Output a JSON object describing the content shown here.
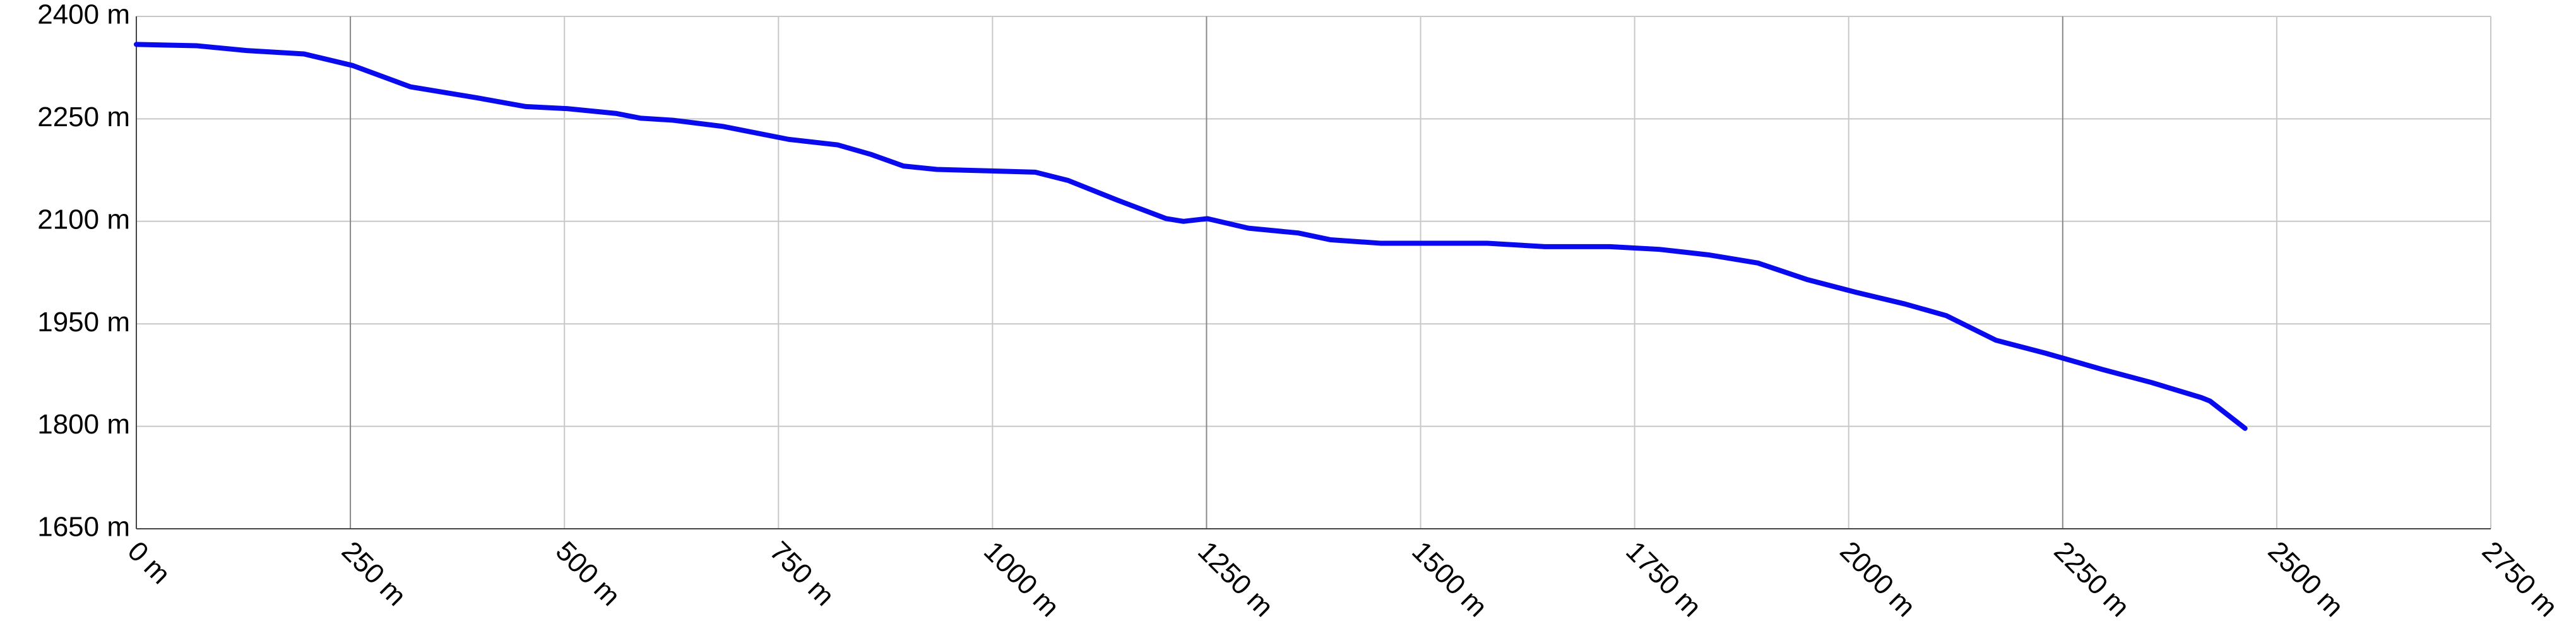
{
  "chart_data": {
    "type": "line",
    "x": [
      0,
      71,
      129,
      196,
      253,
      320,
      397,
      455,
      503,
      560,
      589,
      627,
      685,
      762,
      819,
      858,
      896,
      935,
      992,
      1050,
      1088,
      1146,
      1203,
      1223,
      1251,
      1299,
      1357,
      1395,
      1453,
      1510,
      1578,
      1645,
      1721,
      1779,
      1836,
      1894,
      1951,
      2009,
      2066,
      2114,
      2172,
      2230,
      2297,
      2354,
      2412,
      2422,
      2463
    ],
    "series": [
      {
        "color": "#0a0aee",
        "values": [
          2359,
          2357,
          2350,
          2345,
          2328,
          2297,
          2281,
          2268,
          2265,
          2258,
          2251,
          2248,
          2239,
          2220,
          2212,
          2198,
          2181,
          2176,
          2174,
          2172,
          2160,
          2131,
          2104,
          2100,
          2104,
          2090,
          2083,
          2073,
          2068,
          2068,
          2068,
          2063,
          2063,
          2059,
          2051,
          2039,
          2015,
          1996,
          1979,
          1962,
          1926,
          1907,
          1883,
          1864,
          1842,
          1837,
          1797
        ]
      }
    ],
    "xlim": [
      0,
      2750
    ],
    "ylim": [
      1650,
      2400
    ],
    "xticks": [
      {
        "value": 0,
        "label": "0 m"
      },
      {
        "value": 250,
        "label": "250 m"
      },
      {
        "value": 500,
        "label": "500 m"
      },
      {
        "value": 750,
        "label": "750 m"
      },
      {
        "value": 1000,
        "label": "1000 m"
      },
      {
        "value": 1250,
        "label": "1250 m"
      },
      {
        "value": 1500,
        "label": "1500 m"
      },
      {
        "value": 1750,
        "label": "1750 m"
      },
      {
        "value": 2000,
        "label": "2000 m"
      },
      {
        "value": 2250,
        "label": "2250 m"
      },
      {
        "value": 2500,
        "label": "2500 m"
      },
      {
        "value": 2750,
        "label": "2750 m"
      }
    ],
    "yticks": [
      {
        "value": 1650,
        "label": "1650 m"
      },
      {
        "value": 1800,
        "label": "1800 m"
      },
      {
        "value": 1950,
        "label": "1950 m"
      },
      {
        "value": 2100,
        "label": "2100 m"
      },
      {
        "value": 2250,
        "label": "2250 m"
      },
      {
        "value": 2400,
        "label": "2400 m"
      }
    ],
    "grid": true
  }
}
